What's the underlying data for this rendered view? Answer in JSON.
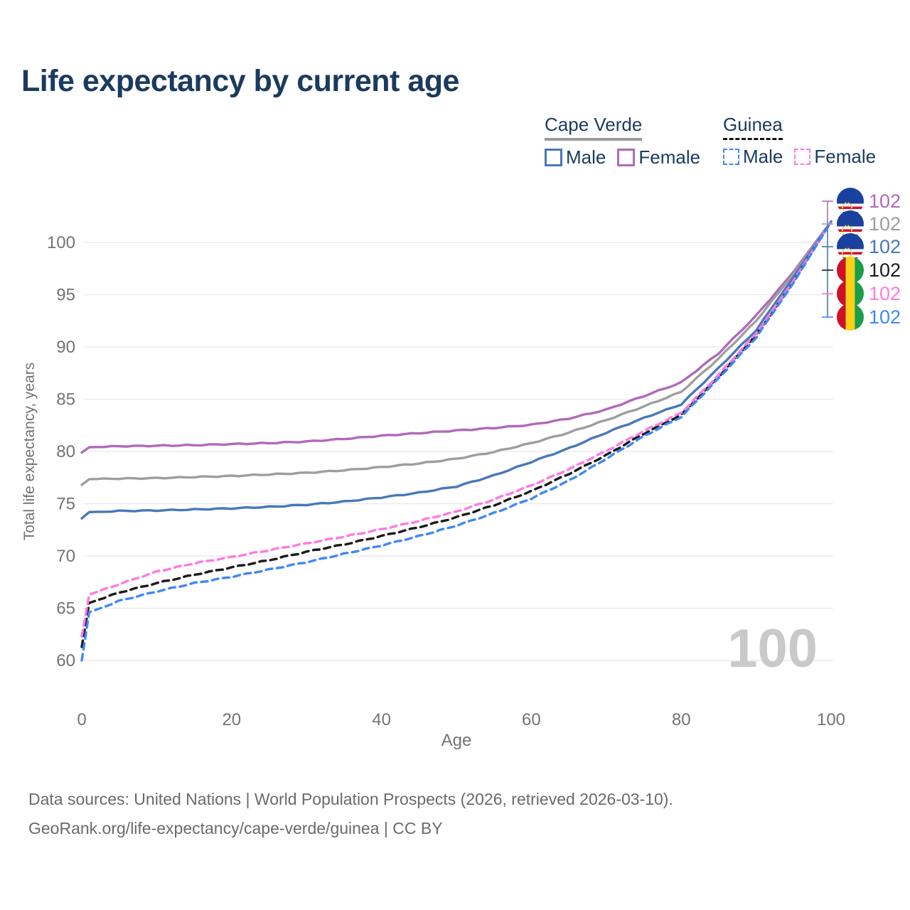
{
  "title": "Life expectancy by current age",
  "watermark": "100",
  "legend": {
    "groups": [
      {
        "label": "Cape Verde",
        "line_style": "solid",
        "line_color": "#9a9a9a",
        "items": [
          {
            "label": "Male",
            "color": "#4878b8",
            "dashed": false
          },
          {
            "label": "Female",
            "color": "#b06ab8",
            "dashed": false
          }
        ]
      },
      {
        "label": "Guinea",
        "line_style": "dashed",
        "line_color": "#141414",
        "items": [
          {
            "label": "Male",
            "color": "#3f88f8",
            "dashed": true
          },
          {
            "label": "Female",
            "color": "#ff7ae0",
            "dashed": true
          }
        ]
      }
    ]
  },
  "footer": {
    "line1": "Data sources: United Nations | World Population Prospects (2026, retrieved 2026-03-10).",
    "line2": "GeoRank.org/life-expectancy/cape-verde/guinea | CC BY"
  },
  "chart_data": {
    "type": "line",
    "title": "Life expectancy by current age",
    "xlabel": "Age",
    "ylabel": "Total life expectancy, years",
    "xlim": [
      0,
      100
    ],
    "ylim": [
      60,
      102
    ],
    "x_ticks": [
      0,
      20,
      40,
      60,
      80,
      100
    ],
    "y_ticks": [
      60,
      65,
      70,
      75,
      80,
      85,
      90,
      95,
      100
    ],
    "grid": true,
    "legend_position": "top-right",
    "ages": [
      0,
      1,
      5,
      10,
      15,
      20,
      25,
      30,
      35,
      40,
      45,
      50,
      55,
      60,
      65,
      70,
      75,
      80,
      85,
      90,
      95,
      100
    ],
    "series": [
      {
        "name": "Cape Verde Female",
        "country": "cape-verde",
        "color": "#b06ab8",
        "dashed": false,
        "end_label": "102",
        "values": [
          79.9,
          80.4,
          80.5,
          80.55,
          80.6,
          80.7,
          80.8,
          80.95,
          81.2,
          81.5,
          81.75,
          82.0,
          82.25,
          82.55,
          83.15,
          84.0,
          85.3,
          86.6,
          89.4,
          93.0,
          97.2,
          102
        ]
      },
      {
        "name": "Cape Verde Both sexes",
        "country": "cape-verde",
        "color": "#9e9e9e",
        "dashed": false,
        "end_label": "102",
        "values": [
          76.8,
          77.35,
          77.4,
          77.45,
          77.55,
          77.65,
          77.8,
          77.95,
          78.2,
          78.5,
          78.85,
          79.3,
          79.95,
          80.8,
          81.8,
          83.0,
          84.3,
          85.7,
          88.9,
          92.5,
          97.0,
          102
        ]
      },
      {
        "name": "Cape Verde Male",
        "country": "cape-verde",
        "color": "#4878b8",
        "dashed": false,
        "end_label": "102",
        "values": [
          73.6,
          74.2,
          74.3,
          74.35,
          74.45,
          74.55,
          74.7,
          74.9,
          75.2,
          75.6,
          76.05,
          76.65,
          77.7,
          79.0,
          80.3,
          81.8,
          83.2,
          84.5,
          88.0,
          91.6,
          96.7,
          102
        ]
      },
      {
        "name": "Guinea Both sexes",
        "country": "guinea",
        "color": "#1a1a1a",
        "dashed": true,
        "end_label": "102",
        "values": [
          61.3,
          65.5,
          66.5,
          67.4,
          68.2,
          68.9,
          69.6,
          70.4,
          71.1,
          71.9,
          72.75,
          73.7,
          74.85,
          76.2,
          77.85,
          79.65,
          81.7,
          83.5,
          87.15,
          91.15,
          96.25,
          102
        ]
      },
      {
        "name": "Guinea Female",
        "country": "guinea",
        "color": "#ff7ae0",
        "dashed": true,
        "end_label": "102",
        "values": [
          62.3,
          66.3,
          67.3,
          68.5,
          69.3,
          69.9,
          70.55,
          71.2,
          71.85,
          72.55,
          73.35,
          74.25,
          75.4,
          76.75,
          78.3,
          80.05,
          81.95,
          83.7,
          87.35,
          91.3,
          96.35,
          102
        ]
      },
      {
        "name": "Guinea Male",
        "country": "guinea",
        "color": "#3f88f8",
        "dashed": true,
        "end_label": "102",
        "values": [
          60.0,
          64.6,
          65.7,
          66.6,
          67.4,
          68.0,
          68.7,
          69.4,
          70.2,
          71.0,
          71.9,
          72.9,
          74.1,
          75.5,
          77.2,
          79.3,
          81.45,
          83.3,
          87.0,
          90.9,
          96.15,
          102
        ]
      }
    ]
  }
}
